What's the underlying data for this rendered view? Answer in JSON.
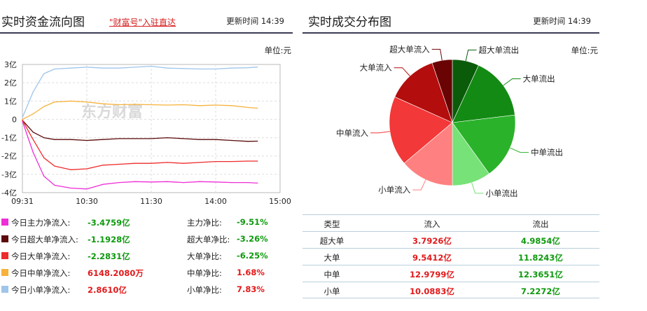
{
  "left_panel": {
    "title": "实时资金流向图",
    "link": "\"财富号\"入驻直达",
    "update_time": "更新时间 14:39",
    "unit": "单位:元",
    "watermark": "东方财富"
  },
  "right_panel": {
    "title": "实时成交分布图",
    "update_time": "更新时间 14:39",
    "unit": "单位:元"
  },
  "flow_stats": [
    {
      "label": "今日主力净流入:",
      "value": "-3.4759亿",
      "ratio_label": "主力净比:",
      "ratio": "-9.51%",
      "color": "#ee2fd7",
      "sign": "neg",
      "ratio_sign": "neg"
    },
    {
      "label": "今日超大单净流入:",
      "value": "-1.1928亿",
      "ratio_label": "超大单净比:",
      "ratio": "-3.26%",
      "color": "#5c0a0a",
      "sign": "neg",
      "ratio_sign": "neg"
    },
    {
      "label": "今日大单净流入:",
      "value": "-2.2831亿",
      "ratio_label": "大单净比:",
      "ratio": "-6.25%",
      "color": "#ef2b2b",
      "sign": "neg",
      "ratio_sign": "neg"
    },
    {
      "label": "今日中单净流入:",
      "value": "6148.2080万",
      "ratio_label": "中单净比:",
      "ratio": "1.68%",
      "color": "#f7b23b",
      "sign": "pos",
      "ratio_sign": "pos"
    },
    {
      "label": "今日小单净流入:",
      "value": "2.8610亿",
      "ratio_label": "小单净比:",
      "ratio": "7.83%",
      "color": "#9fc5ea",
      "sign": "pos",
      "ratio_sign": "pos"
    }
  ],
  "dist_table": {
    "headers": [
      "类型",
      "流入",
      "流出"
    ],
    "rows": [
      {
        "type": "超大单",
        "in": "3.7926亿",
        "out": "4.9854亿"
      },
      {
        "type": "大单",
        "in": "9.5412亿",
        "out": "11.8243亿"
      },
      {
        "type": "中单",
        "in": "12.9799亿",
        "out": "12.3651亿"
      },
      {
        "type": "小单",
        "in": "10.0883亿",
        "out": "7.2272亿"
      }
    ]
  },
  "chart_data": [
    {
      "type": "line",
      "title": "实时资金流向图",
      "x_ticks": [
        "09:31",
        "10:30",
        "11:30",
        "14:00",
        "15:00"
      ],
      "y_ticks": [
        "3亿",
        "2亿",
        "1亿",
        "0",
        "-1亿",
        "-2亿",
        "-3亿",
        "-4亿"
      ],
      "ylim": [
        -4,
        3
      ],
      "grid": true,
      "x": [
        "09:31",
        "09:40",
        "09:50",
        "10:00",
        "10:15",
        "10:30",
        "10:45",
        "11:00",
        "11:15",
        "11:30",
        "13:15",
        "13:30",
        "13:45",
        "14:00",
        "14:15",
        "14:30",
        "14:39"
      ],
      "series": [
        {
          "name": "今日主力净流入",
          "color": "#ee2fd7",
          "values": [
            -0.1,
            -1.8,
            -3.1,
            -3.6,
            -3.75,
            -3.8,
            -3.55,
            -3.45,
            -3.4,
            -3.42,
            -3.4,
            -3.45,
            -3.4,
            -3.42,
            -3.45,
            -3.45,
            -3.48
          ]
        },
        {
          "name": "今日超大单净流入",
          "color": "#5c0a0a",
          "values": [
            -0.05,
            -0.7,
            -1.0,
            -1.1,
            -1.1,
            -1.15,
            -1.1,
            -1.05,
            -1.05,
            -1.05,
            -1.0,
            -1.05,
            -1.1,
            -1.1,
            -1.15,
            -1.2,
            -1.19
          ]
        },
        {
          "name": "今日大单净流入",
          "color": "#ef2b2b",
          "values": [
            -0.05,
            -1.1,
            -2.1,
            -2.55,
            -2.75,
            -2.7,
            -2.5,
            -2.45,
            -2.4,
            -2.4,
            -2.35,
            -2.4,
            -2.35,
            -2.3,
            -2.3,
            -2.28,
            -2.28
          ]
        },
        {
          "name": "今日中单净流入",
          "color": "#f7b23b",
          "values": [
            0.0,
            0.3,
            0.7,
            0.95,
            1.0,
            0.95,
            0.85,
            0.8,
            0.82,
            0.8,
            0.78,
            0.8,
            0.75,
            0.78,
            0.75,
            0.65,
            0.61
          ]
        },
        {
          "name": "今日小单净流入",
          "color": "#9fc5ea",
          "values": [
            0.1,
            1.5,
            2.5,
            2.75,
            2.8,
            2.85,
            2.8,
            2.8,
            2.85,
            2.9,
            2.8,
            2.78,
            2.75,
            2.75,
            2.8,
            2.82,
            2.86
          ]
        }
      ]
    },
    {
      "type": "pie",
      "title": "实时成交分布图",
      "slices": [
        {
          "label": "超大单流出",
          "value": 4.9854,
          "color": "#0a5c0a"
        },
        {
          "label": "大单流出",
          "value": 11.8243,
          "color": "#138a13"
        },
        {
          "label": "中单流出",
          "value": 12.3651,
          "color": "#2bb22b"
        },
        {
          "label": "小单流出",
          "value": 7.2272,
          "color": "#77e277"
        },
        {
          "label": "小单流入",
          "value": 10.0883,
          "color": "#ff8080"
        },
        {
          "label": "中单流入",
          "value": 12.9799,
          "color": "#f23838"
        },
        {
          "label": "大单流入",
          "value": 9.5412,
          "color": "#b30d0d"
        },
        {
          "label": "超大单流入",
          "value": 3.7926,
          "color": "#6a0303"
        }
      ]
    }
  ]
}
